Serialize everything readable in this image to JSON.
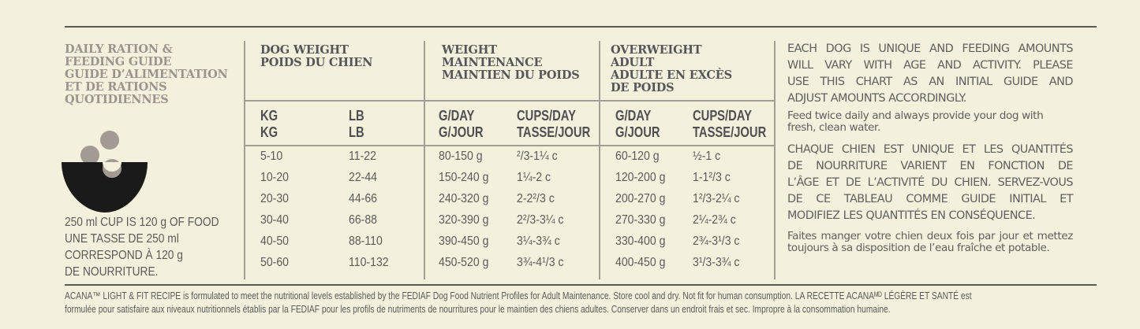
{
  "left_panel": {
    "title_lines": [
      "DAILY RATION &",
      "FEEDING GUIDE",
      "GUIDE D’ALIMENTATION",
      "ET DE RATIONS",
      "QUOTIDIENNES"
    ],
    "icon": "food-bowl-icon",
    "cup_note_lines": [
      "250 ml CUP IS 120 g OF FOOD",
      "UNE TASSE DE 250 ml",
      "CORRESPOND À 120 g",
      "DE NOURRITURE."
    ]
  },
  "table": {
    "groups": [
      {
        "title_lines": [
          "DOG WEIGHT",
          "POIDS DU CHIEN"
        ],
        "sub": [
          [
            "KG",
            "KG"
          ],
          [
            "LB",
            "LB"
          ]
        ]
      },
      {
        "title_lines": [
          "WEIGHT",
          "MAINTENANCE",
          "MAINTIEN DU POIDS"
        ],
        "sub": [
          [
            "G/DAY",
            "G/JOUR"
          ],
          [
            "CUPS/DAY",
            "TASSE/JOUR"
          ]
        ]
      },
      {
        "title_lines": [
          "OVERWEIGHT",
          "ADULT",
          "ADULTE EN EXCÈS",
          "DE POIDS"
        ],
        "sub": [
          [
            "G/DAY",
            "G/JOUR"
          ],
          [
            "CUPS/DAY",
            "TASSE/JOUR"
          ]
        ]
      }
    ],
    "rows": [
      [
        "5-10",
        "11-22",
        "80-150 g",
        "²/3-1¼ c",
        "60-120 g",
        "½-1 c"
      ],
      [
        "10-20",
        "22-44",
        "150-240 g",
        "1¼-2 c",
        "120-200 g",
        "1-1²/3 c"
      ],
      [
        "20-30",
        "44-66",
        "240-320 g",
        "2-2²/3 c",
        "200-270 g",
        "1²/3-2¼ c"
      ],
      [
        "30-40",
        "66-88",
        "320-390 g",
        "2²/3-3¼ c",
        "270-330 g",
        "2¼-2¾ c"
      ],
      [
        "40-50",
        "88-110",
        "390-450 g",
        "3¼-3¾ c",
        "330-400 g",
        "2¾-3¹/3 c"
      ],
      [
        "50-60",
        "110-132",
        "450-520 g",
        "3¾-4¹/3 c",
        "400-450 g",
        "3¹/3-3¾ c"
      ]
    ]
  },
  "right_panel": {
    "en_caps_lines": [
      "EACH DOG IS UNIQUE AND FEEDING AMOUNTS",
      "WILL VARY WITH AGE AND ACTIVITY. PLEASE",
      "USE THIS CHART AS AN INITIAL GUIDE AND",
      "ADJUST AMOUNTS ACCORDINGLY."
    ],
    "en_small": "Feed twice daily and always provide your dog with fresh, clean water.",
    "fr_caps_lines": [
      "CHAQUE CHIEN EST UNIQUE ET LES QUANTITÉS",
      "DE NOURRITURE VARIENT EN FONCTION DE",
      "L’ÂGE ET DE L’ACTIVITÉ DU CHIEN. SERVEZ-VOUS",
      "DE CE TABLEAU COMME GUIDE INITIAL ET",
      "MODIFIEZ LES QUANTITÉS EN CONSÉQUENCE."
    ],
    "fr_small": "Faites manger votre chien deux fois par jour et mettez toujours à sa disposition de l’eau fraîche et potable."
  },
  "footer": {
    "line1": "ACANA™ LIGHT & FIT RECIPE is formulated to meet the nutritional levels established by the FEDIAF Dog Food Nutrient Profiles for Adult Maintenance. Store cool and dry.  Not fit for human consumption. LA RECETTE ACANAᴹᴰ LÉGÈRE ET SANTÉ est",
    "line2": "formulée pour satisfaire aux niveaux nutritionnels établis par la FEDIAF pour les profils de nutriments de nourritures pour le maintien des chiens adultes. Conserver dans un endroit frais et sec. Impropre à la consommation humaine."
  },
  "colors": {
    "background": "#f3f1dc",
    "rule": "#5a5a55",
    "divider": "#a29d97",
    "title_grey": "#9a948e",
    "text": "#58585a",
    "bowl": "#1a1a1a",
    "kibble": "#a39b93"
  }
}
